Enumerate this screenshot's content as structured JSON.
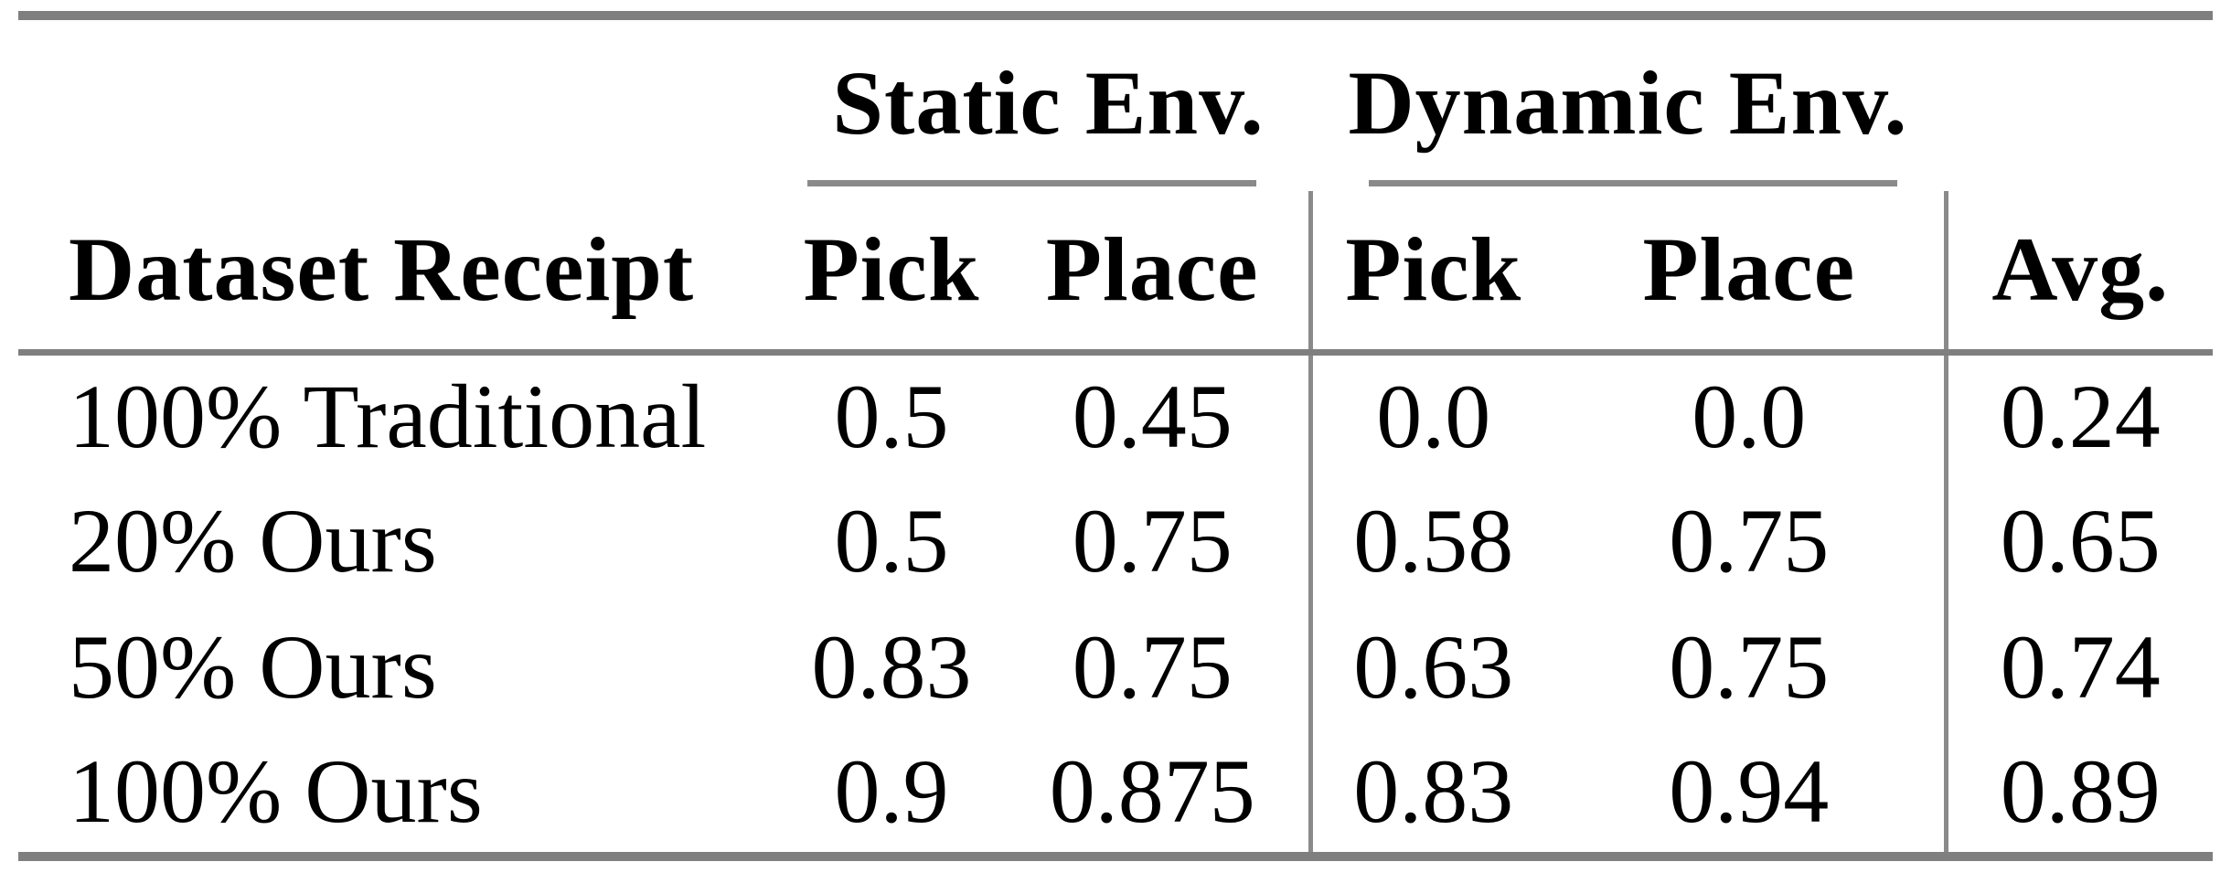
{
  "table": {
    "groups": [
      {
        "label": "Static Env."
      },
      {
        "label": "Dynamic Env."
      }
    ],
    "headers": {
      "dataset": "Dataset Receipt",
      "static_pick": "Pick",
      "static_place": "Place",
      "dynamic_pick": "Pick",
      "dynamic_place": "Place",
      "avg": "Avg."
    },
    "rows": [
      {
        "dataset": "100% Traditional",
        "static_pick": "0.5",
        "static_place": "0.45",
        "dynamic_pick": "0.0",
        "dynamic_place": "0.0",
        "avg": "0.24"
      },
      {
        "dataset": "20% Ours",
        "static_pick": "0.5",
        "static_place": "0.75",
        "dynamic_pick": "0.58",
        "dynamic_place": "0.75",
        "avg": "0.65"
      },
      {
        "dataset": "50% Ours",
        "static_pick": "0.83",
        "static_place": "0.75",
        "dynamic_pick": "0.63",
        "dynamic_place": "0.75",
        "avg": "0.74"
      },
      {
        "dataset": "100% Ours",
        "static_pick": "0.9",
        "static_place": "0.875",
        "dynamic_pick": "0.83",
        "dynamic_place": "0.94",
        "avg": "0.89"
      }
    ]
  },
  "colors": {
    "heavy_rule": "#7f7f7f",
    "light_rule": "#8a8a8a",
    "text": "#000000",
    "background": "#ffffff"
  },
  "chart_data": {
    "type": "table",
    "columns": [
      "Dataset Receipt",
      "Static Env. Pick",
      "Static Env. Place",
      "Dynamic Env. Pick",
      "Dynamic Env. Place",
      "Avg."
    ],
    "rows": [
      [
        "100% Traditional",
        0.5,
        0.45,
        0.0,
        0.0,
        0.24
      ],
      [
        "20% Ours",
        0.5,
        0.75,
        0.58,
        0.75,
        0.65
      ],
      [
        "50% Ours",
        0.83,
        0.75,
        0.63,
        0.75,
        0.74
      ],
      [
        "100% Ours",
        0.9,
        0.875,
        0.83,
        0.94,
        0.89
      ]
    ]
  }
}
